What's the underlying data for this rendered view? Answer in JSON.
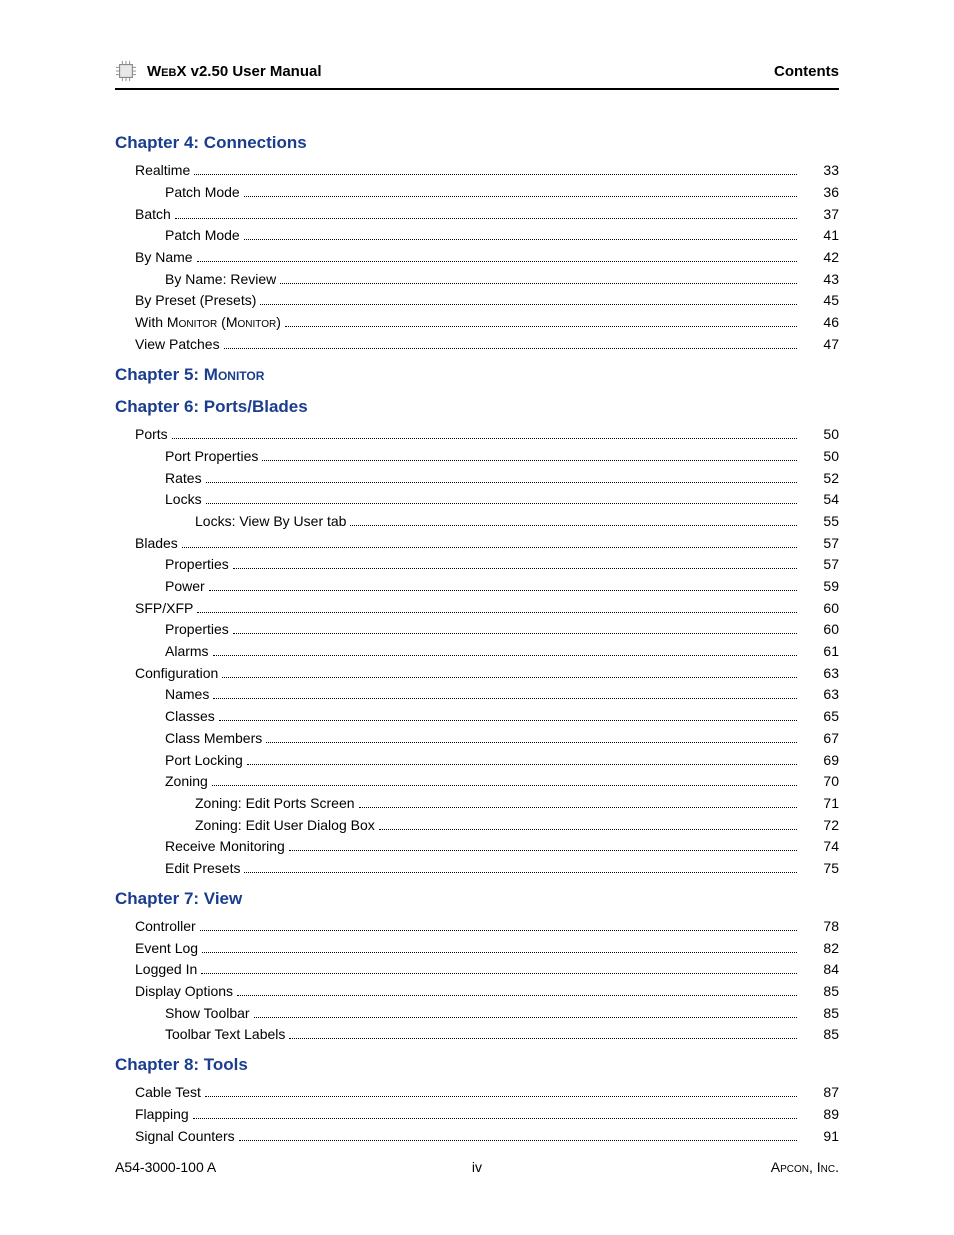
{
  "colors": {
    "heading": "#1a3d8f",
    "text": "#000000",
    "rule": "#000000",
    "chip_stroke": "#888888",
    "chip_fill": "#e8e8e8"
  },
  "typography": {
    "body_family": "Arial, Helvetica, sans-serif",
    "body_size_pt": 11,
    "heading_size_pt": 13,
    "header_size_pt": 11
  },
  "header": {
    "title_prefix": "WebX",
    "title_rest": " v2.50 User Manual",
    "section": "Contents"
  },
  "footer": {
    "left": "A54-3000-100 A",
    "center": "iv",
    "right": "Apcon, Inc."
  },
  "chapters": [
    {
      "title": "Chapter 4: Connections",
      "entries": [
        {
          "label": "Realtime",
          "page": "33",
          "indent": 1
        },
        {
          "label": "Patch Mode",
          "page": "36",
          "indent": 2
        },
        {
          "label": "Batch",
          "page": "37",
          "indent": 1
        },
        {
          "label": "Patch Mode",
          "page": "41",
          "indent": 2
        },
        {
          "label": "By Name",
          "page": "42",
          "indent": 1
        },
        {
          "label": "By Name: Review",
          "page": "43",
          "indent": 2
        },
        {
          "label": "By Preset (Presets)",
          "page": "45",
          "indent": 1
        },
        {
          "label_html": "With M<span class=\"smallcaps\">onitor</span> (M<span class=\"smallcaps\">onitor</span>)",
          "page": "46",
          "indent": 1
        },
        {
          "label": "View Patches",
          "page": "47",
          "indent": 1
        }
      ]
    },
    {
      "title_html": "Chapter 5: M<span class=\"smallcaps\">onitor</span>",
      "entries": []
    },
    {
      "title": "Chapter 6: Ports/Blades",
      "entries": [
        {
          "label": "Ports",
          "page": "50",
          "indent": 1
        },
        {
          "label": "Port Properties",
          "page": "50",
          "indent": 2
        },
        {
          "label": "Rates",
          "page": "52",
          "indent": 2
        },
        {
          "label": "Locks",
          "page": "54",
          "indent": 2
        },
        {
          "label": "Locks: View By User tab",
          "page": "55",
          "indent": 3
        },
        {
          "label": "Blades",
          "page": "57",
          "indent": 1
        },
        {
          "label": "Properties",
          "page": "57",
          "indent": 2
        },
        {
          "label": "Power",
          "page": "59",
          "indent": 2
        },
        {
          "label": "SFP/XFP",
          "page": "60",
          "indent": 1
        },
        {
          "label": "Properties",
          "page": "60",
          "indent": 2
        },
        {
          "label": "Alarms",
          "page": "61",
          "indent": 2
        },
        {
          "label": "Configuration",
          "page": "63",
          "indent": 1
        },
        {
          "label": "Names",
          "page": "63",
          "indent": 2
        },
        {
          "label": "Classes",
          "page": "65",
          "indent": 2
        },
        {
          "label": "Class Members",
          "page": "67",
          "indent": 2
        },
        {
          "label": "Port Locking",
          "page": "69",
          "indent": 2
        },
        {
          "label": "Zoning",
          "page": "70",
          "indent": 2
        },
        {
          "label": "Zoning: Edit Ports Screen",
          "page": "71",
          "indent": 3
        },
        {
          "label": "Zoning: Edit User Dialog Box",
          "page": "72",
          "indent": 3
        },
        {
          "label": "Receive Monitoring",
          "page": "74",
          "indent": 2
        },
        {
          "label": "Edit Presets",
          "page": "75",
          "indent": 2
        }
      ]
    },
    {
      "title": "Chapter 7: View",
      "entries": [
        {
          "label": "Controller",
          "page": "78",
          "indent": 1
        },
        {
          "label": "Event Log",
          "page": "82",
          "indent": 1
        },
        {
          "label": "Logged In",
          "page": "84",
          "indent": 1
        },
        {
          "label": "Display Options",
          "page": "85",
          "indent": 1
        },
        {
          "label": "Show Toolbar",
          "page": "85",
          "indent": 2
        },
        {
          "label": "Toolbar Text Labels",
          "page": "85",
          "indent": 2
        }
      ]
    },
    {
      "title": "Chapter 8: Tools",
      "entries": [
        {
          "label": "Cable Test",
          "page": "87",
          "indent": 1
        },
        {
          "label": "Flapping",
          "page": "89",
          "indent": 1
        },
        {
          "label": "Signal Counters",
          "page": "91",
          "indent": 1
        }
      ]
    }
  ]
}
